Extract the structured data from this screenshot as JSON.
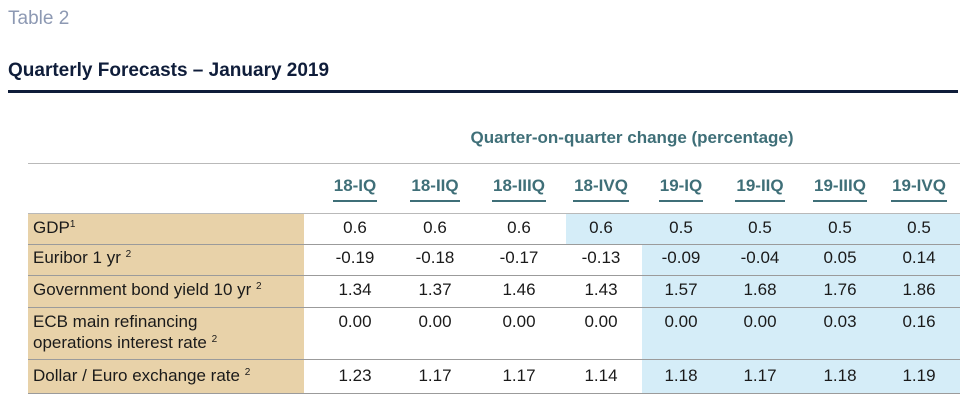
{
  "table_label": "Table 2",
  "title": "Quarterly Forecasts – January 2019",
  "subheading": "Quarter-on-quarter change (percentage)",
  "columns": [
    "18-IQ",
    "18-IIQ",
    "18-IIIQ",
    "18-IVQ",
    "19-IQ",
    "19-IIQ",
    "19-IIIQ",
    "19-IVQ"
  ],
  "rows": [
    {
      "label": "GDP",
      "label_line2": "",
      "footnote": "1",
      "values": [
        "0.6",
        "0.6",
        "0.6",
        "0.6",
        "0.5",
        "0.5",
        "0.5",
        "0.5"
      ]
    },
    {
      "label": "Euribor 1 yr",
      "label_line2": "",
      "footnote": "2",
      "values": [
        "-0.19",
        "-0.18",
        "-0.17",
        "-0.13",
        "-0.09",
        "-0.04",
        "0.05",
        "0.14"
      ]
    },
    {
      "label": "Government bond yield 10 yr",
      "label_line2": "",
      "footnote": "2",
      "values": [
        "1.34",
        "1.37",
        "1.46",
        "1.43",
        "1.57",
        "1.68",
        "1.76",
        "1.86"
      ]
    },
    {
      "label": "ECB main refinancing",
      "label_line2": "operations interest rate",
      "footnote": "2",
      "values": [
        "0.00",
        "0.00",
        "0.00",
        "0.00",
        "0.00",
        "0.00",
        "0.03",
        "0.16"
      ]
    },
    {
      "label": "Dollar / Euro exchange rate",
      "label_line2": "",
      "footnote": "2",
      "values": [
        "1.23",
        "1.17",
        "1.17",
        "1.14",
        "1.18",
        "1.17",
        "1.18",
        "1.19"
      ]
    }
  ],
  "colors": {
    "label_column_bg": "#e8d2a9",
    "forecast_bg": "#d5edf8",
    "header_text": "#3f6f78",
    "title_text": "#0f1d3a",
    "table_label_text": "#8d99b3"
  }
}
